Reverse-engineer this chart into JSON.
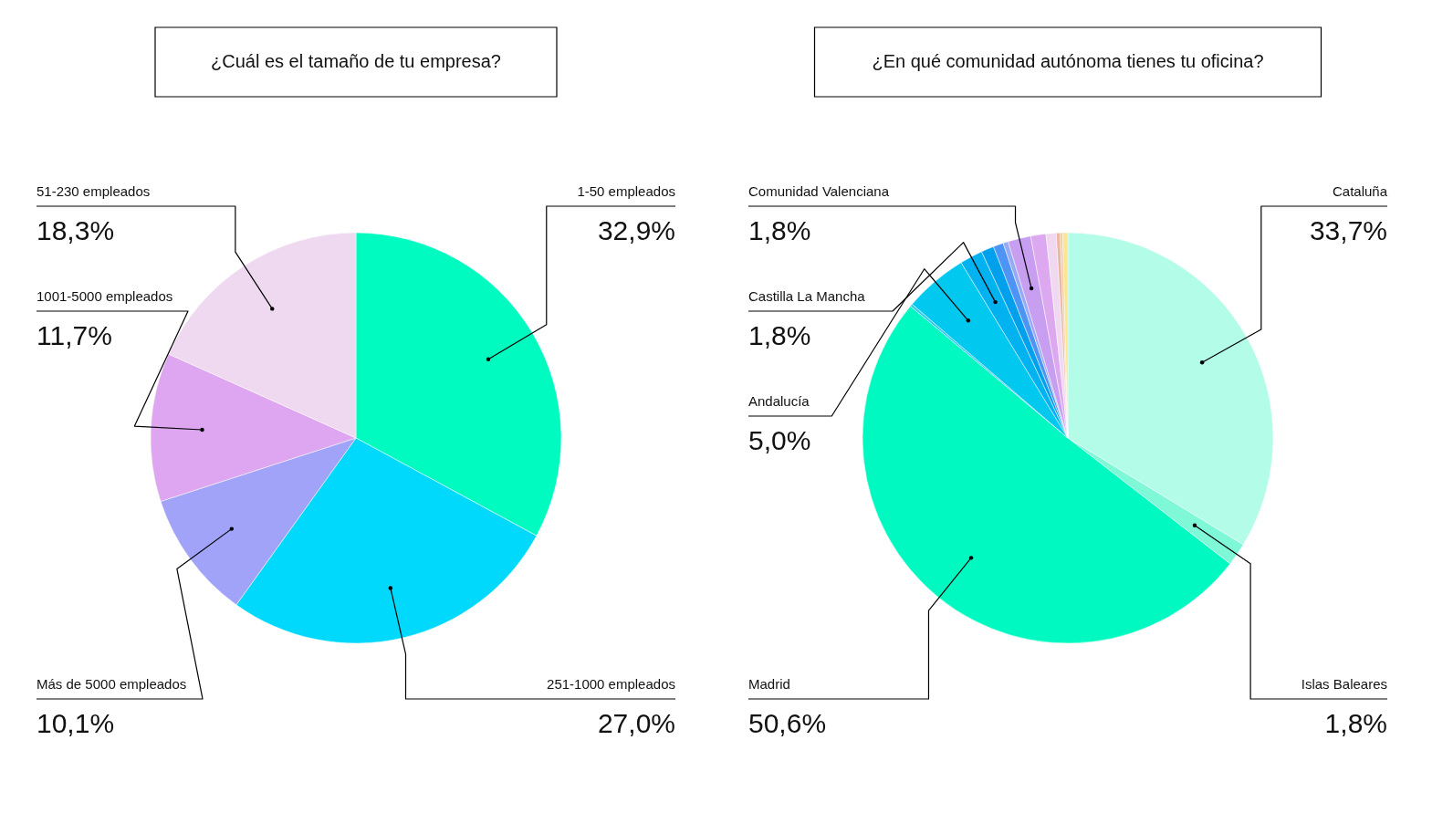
{
  "chart_data": [
    {
      "type": "pie",
      "title": "¿Cuál es el tamaño de tu empresa?",
      "categories": [
        "1-50 empleados",
        "251-1000 empleados",
        "Más de 5000 empleados",
        "1001-5000 empleados",
        "51-230 empleados"
      ],
      "values": [
        32.9,
        27.0,
        10.1,
        11.7,
        18.3
      ],
      "colors": [
        "#00fbc1",
        "#00d8fc",
        "#a0a3f8",
        "#dea5f0",
        "#efd9f0"
      ],
      "value_labels": [
        "32,9%",
        "27,0%",
        "10,1%",
        "11,7%",
        "18,3%"
      ],
      "legend": false
    },
    {
      "type": "pie",
      "title": "¿En qué comunidad autónoma tienes tu oficina?",
      "categories": [
        "Cataluña",
        "Islas Baleares",
        "Madrid",
        null,
        "Andalucía",
        "Castilla La Mancha",
        null,
        null,
        null,
        "Comunidad Valenciana",
        null,
        null,
        null,
        null,
        null
      ],
      "values": [
        33.7,
        1.8,
        50.6,
        0.2,
        5.0,
        1.8,
        1.0,
        0.8,
        0.4,
        1.8,
        1.2,
        0.8,
        0.3,
        0.2,
        0.4
      ],
      "colors": [
        "#b3fce8",
        "#7ff8d8",
        "#00f9c0",
        "#33c9f0",
        "#00c8ee",
        "#00b2ef",
        "#00a0ec",
        "#4d94f4",
        "#96aaf7",
        "#c89ef0",
        "#dca8f0",
        "#f0d8f0",
        "#e8b8a0",
        "#f5c8a0",
        "#fce490"
      ],
      "value_labels": [
        "33,7%",
        "1,8%",
        "50,6%",
        null,
        "5,0%",
        "1,8%",
        null,
        null,
        null,
        "1,8%",
        null,
        null,
        null,
        null,
        null
      ],
      "legend": false
    }
  ]
}
